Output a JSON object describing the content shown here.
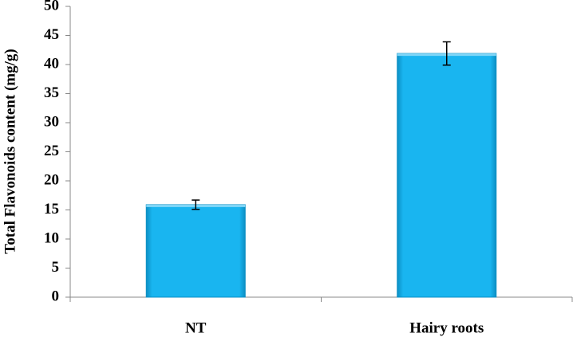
{
  "chart_data": {
    "type": "bar",
    "y_label": "Total Flavonoids content (mg/g)",
    "categories": [
      "NT",
      "Hairy roots"
    ],
    "values": [
      15.9,
      41.9
    ],
    "errors": [
      0.8,
      2
    ],
    "color": "#19b5f0",
    "ylim": [
      0,
      50
    ],
    "yticks": [
      0,
      5,
      10,
      15,
      20,
      25,
      30,
      35,
      40,
      45,
      50
    ],
    "grid": false
  }
}
